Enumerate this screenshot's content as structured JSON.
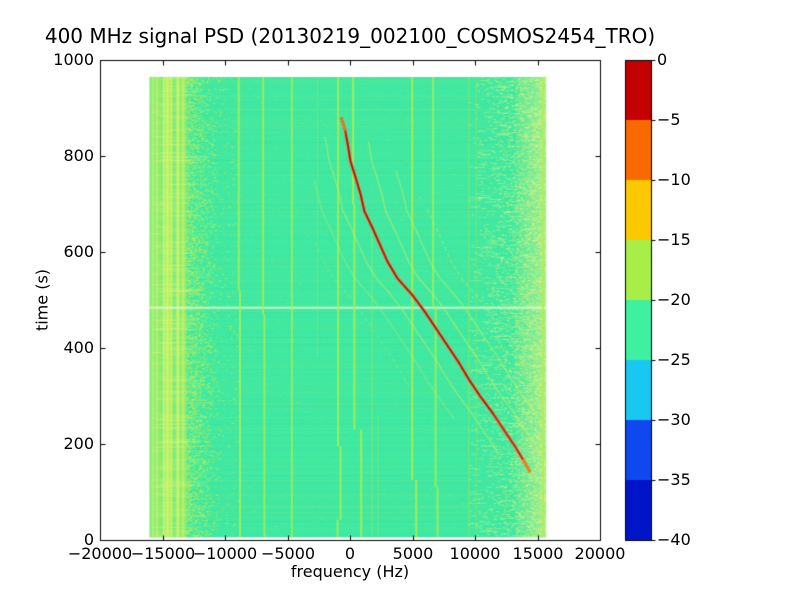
{
  "chart_data": {
    "type": "heatmap",
    "title": "400 MHz signal PSD (20130219_002100_COSMOS2454_TRO)",
    "xlabel": "frequency (Hz)",
    "ylabel": "time (s)",
    "xlim": [
      -20000,
      20000
    ],
    "ylim": [
      0,
      1000
    ],
    "x_ticks": [
      -20000,
      -15000,
      -10000,
      -5000,
      0,
      5000,
      10000,
      15000,
      20000
    ],
    "x_tick_labels": [
      "−20000",
      "−15000",
      "−10000",
      "−5000",
      "0",
      "5000",
      "10000",
      "15000",
      "20000"
    ],
    "y_ticks": [
      0,
      200,
      400,
      600,
      800,
      1000
    ],
    "y_tick_labels": [
      "0",
      "200",
      "400",
      "600",
      "800",
      "1000"
    ],
    "grid": false,
    "background_level_color": "#3fe9a2",
    "data_extent": {
      "f_min": -16050,
      "f_max": 15700,
      "t_min": 5,
      "t_max": 965
    },
    "colorbar": {
      "vmin": -40,
      "vmax": 0,
      "ticks": [
        0,
        -5,
        -10,
        -15,
        -20,
        -25,
        -30,
        -35,
        -40
      ],
      "tick_labels": [
        "0",
        "−5",
        "−10",
        "−15",
        "−20",
        "−25",
        "−30",
        "−35",
        "−40"
      ],
      "segment_colors_top_to_bottom": [
        "#c40000",
        "#f86a00",
        "#fcc800",
        "#a8ee48",
        "#3ef0a0",
        "#18c8f0",
        "#1048f0",
        "#0014c8"
      ]
    },
    "doppler_track": {
      "description": "bright satellite Doppler S-curve, points as [time_s, frequency_hz]",
      "color": "#d62816",
      "halo_color": "#f78c32",
      "core_color": "#a50f0a",
      "tip_color": "#ef7f28",
      "points_t_f": [
        [
          880,
          -700
        ],
        [
          855,
          -400
        ],
        [
          820,
          -150
        ],
        [
          790,
          30
        ],
        [
          755,
          450
        ],
        [
          720,
          850
        ],
        [
          685,
          1150
        ],
        [
          650,
          1800
        ],
        [
          615,
          2400
        ],
        [
          580,
          3000
        ],
        [
          545,
          3800
        ],
        [
          510,
          5000
        ],
        [
          475,
          6000
        ],
        [
          440,
          6900
        ],
        [
          405,
          7800
        ],
        [
          370,
          8700
        ],
        [
          335,
          9500
        ],
        [
          300,
          10400
        ],
        [
          265,
          11400
        ],
        [
          230,
          12300
        ],
        [
          195,
          13200
        ],
        [
          165,
          13900
        ],
        [
          142,
          14400
        ]
      ]
    },
    "echo_tracks": {
      "description": "faint curves parallel to main Doppler track",
      "color": "#c8f25c",
      "offsets_hz": [
        -5100,
        -3400,
        -1700,
        1700,
        3400,
        5100,
        6800
      ],
      "alphas": [
        0.22,
        0.3,
        0.45,
        0.5,
        0.45,
        0.38,
        0.28
      ],
      "t_ranges": [
        [
          300,
          620
        ],
        [
          250,
          750
        ],
        [
          180,
          840
        ],
        [
          150,
          830
        ],
        [
          145,
          770
        ],
        [
          150,
          690
        ],
        [
          170,
          560
        ]
      ]
    },
    "stray_tracks": {
      "color": "#c8f25c",
      "alpha": 0.22,
      "segments_f_t": [
        [
          -12600,
          470,
          -10900,
          335
        ],
        [
          -12400,
          800,
          -10600,
          660
        ]
      ]
    },
    "carrier_lines": {
      "description": "vertical narrowband carriers, segments as [t0,t1,frequency_hz]",
      "color": "#b2ee4c",
      "lines": [
        {
          "alpha": 0.8,
          "width": 2,
          "segs": [
            [
              5,
              520,
              -8800
            ],
            [
              520,
              965,
              -8900
            ]
          ]
        },
        {
          "alpha": 0.75,
          "width": 2,
          "segs": [
            [
              5,
              470,
              -6850
            ],
            [
              470,
              965,
              -6950
            ]
          ]
        },
        {
          "alpha": 0.7,
          "width": 2,
          "segs": [
            [
              5,
              965,
              -4650
            ]
          ]
        },
        {
          "alpha": 0.8,
          "width": 2,
          "segs": [
            [
              5,
              42,
              -1000
            ],
            [
              42,
              195,
              -760
            ],
            [
              195,
              965,
              -950
            ]
          ]
        },
        {
          "alpha": 0.85,
          "width": 2,
          "segs": [
            [
              5,
              230,
              900
            ],
            [
              230,
              700,
              350
            ],
            [
              700,
              965,
              250
            ]
          ]
        },
        {
          "alpha": 0.4,
          "width": 1.4,
          "segs": [
            [
              5,
              650,
              1760
            ]
          ]
        },
        {
          "alpha": 0.3,
          "width": 1.2,
          "segs": [
            [
              5,
              260,
              2250
            ]
          ]
        },
        {
          "alpha": 0.85,
          "width": 2,
          "segs": [
            [
              5,
              125,
              5300
            ],
            [
              125,
              965,
              4980
            ]
          ]
        },
        {
          "alpha": 0.75,
          "width": 2,
          "segs": [
            [
              5,
              110,
              7000
            ],
            [
              110,
              488,
              6850
            ],
            [
              488,
              965,
              6650
            ]
          ]
        },
        {
          "alpha": 0.35,
          "width": 1.4,
          "segs": [
            [
              5,
              965,
              9500
            ]
          ]
        },
        {
          "alpha": 0.28,
          "width": 1.2,
          "segs": [
            [
              5,
              965,
              10100
            ]
          ]
        },
        {
          "alpha": 0.3,
          "width": 1.2,
          "segs": [
            [
              380,
              965,
              -2600
            ]
          ]
        },
        {
          "alpha": 0.9,
          "width": 2,
          "segs": [
            [
              5,
              965,
              15450
            ]
          ]
        }
      ]
    },
    "noise_bands": {
      "left": {
        "f_start": -16050,
        "f_solid_end": -13100,
        "f_fade_end": -10300,
        "color": "#b8ee56",
        "bright_stripes_f": [
          -15800,
          -15500,
          -14950,
          -14700,
          -14600,
          -14350,
          -13800,
          -13350
        ],
        "dark_stripes_f": [
          -15650,
          -15100,
          -14100
        ]
      },
      "right": {
        "f_fade_start": 9500,
        "f_strong_start": 13200,
        "f_end": 15700,
        "color": "#d6f07e"
      }
    },
    "horizontal_artifact_t": 485
  }
}
